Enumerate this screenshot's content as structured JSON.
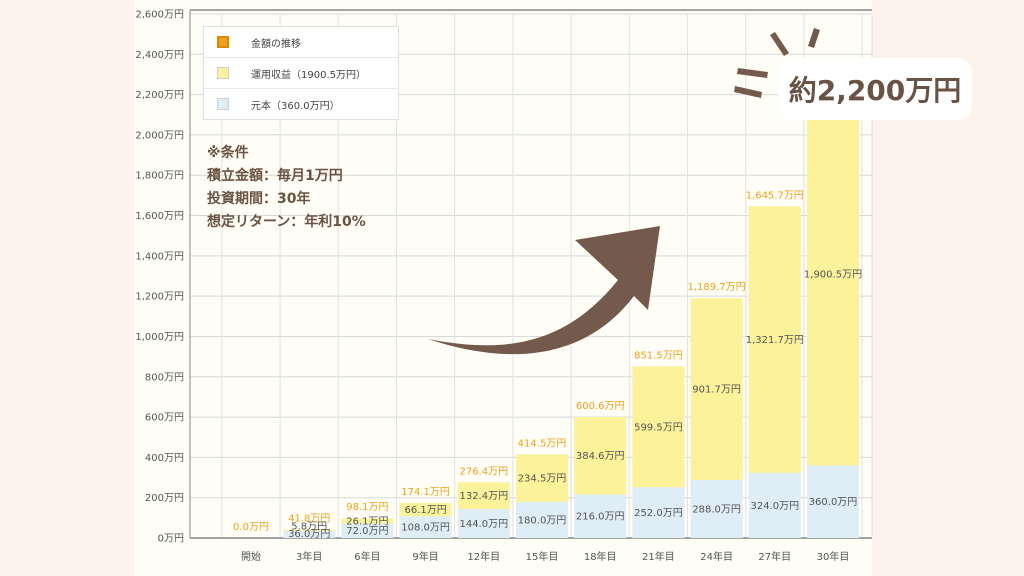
{
  "chart_data": {
    "type": "bar",
    "stacked": true,
    "categories": [
      "開始",
      "3年目",
      "6年目",
      "9年目",
      "12年目",
      "15年目",
      "18年目",
      "21年目",
      "24年目",
      "27年目",
      "30年目"
    ],
    "series": [
      {
        "name": "元本（360.0万円）",
        "color": "#dfeef6",
        "values": [
          0,
          36,
          72,
          108,
          144,
          180,
          216,
          252,
          288,
          324,
          360
        ],
        "labels": [
          "",
          "36.0万円",
          "72.0万円",
          "108.0万円",
          "144.0万円",
          "180.0万円",
          "216.0万円",
          "252.0万円",
          "288.0万円",
          "324.0万円",
          "360.0万円"
        ]
      },
      {
        "name": "運用収益（1900.5万円）",
        "color": "#fcf29a",
        "values": [
          0,
          5.8,
          26.1,
          66.1,
          132.4,
          234.5,
          384.6,
          599.5,
          901.7,
          1321.7,
          1900.5
        ],
        "labels": [
          "",
          "5.8万円",
          "26.1万円",
          "66.1万円",
          "132.4万円",
          "234.5万円",
          "384.6万円",
          "599.5万円",
          "901.7万円",
          "1,321.7万円",
          "1,900.5万円"
        ]
      }
    ],
    "totals": {
      "name": "金額の推移",
      "color": "#f0a11a",
      "labels": [
        "0.0万円",
        "41.8万円",
        "98.1万円",
        "174.1万円",
        "276.4万円",
        "414.5万円",
        "600.6万円",
        "851.5万円",
        "1,189.7万円",
        "1,645.7万円",
        ""
      ]
    },
    "ylim": [
      0,
      2600
    ],
    "yticks": [
      0,
      200,
      400,
      600,
      800,
      1000,
      1200,
      1400,
      1600,
      1800,
      2000,
      2200,
      2400,
      2600
    ],
    "ytick_labels": [
      "0万円",
      "200万円",
      "400万円",
      "600万円",
      "800万円",
      "1,000万円",
      "1,200万円",
      "1,400万円",
      "1,600万円",
      "1,800万円",
      "2,000万円",
      "2,200万円",
      "2,400万円",
      "2,600万円"
    ],
    "grid": true,
    "legend_position": "top-left",
    "title": "",
    "xlabel": "",
    "ylabel": ""
  },
  "legend": [
    {
      "label": "金額の推移",
      "color": "#f0a11a"
    },
    {
      "label": "運用収益（1900.5万円）",
      "color": "#fcf29a"
    },
    {
      "label": "元本（360.0万円）",
      "color": "#dfeef6"
    }
  ],
  "conditions": {
    "heading": "※条件",
    "line1": "積立金額：毎月1万円",
    "line2": "投資期間：30年",
    "line3": "想定リターン：年利10%"
  },
  "callout": {
    "text": "約2,200万円"
  },
  "colors": {
    "arrow": "#735a4c",
    "accent_text": "#6b5344",
    "background": "#fdf3ec"
  }
}
